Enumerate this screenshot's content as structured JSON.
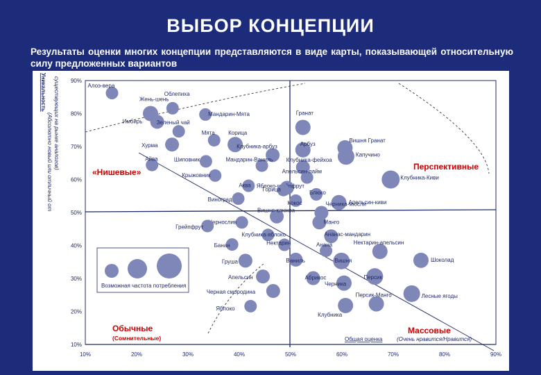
{
  "title": "ВЫБОР КОНЦЕПЦИИ",
  "subtitle": "Результаты оценки многих концепции представляются в виде карты, показывающей относительную силу предложенных вариантов",
  "colors": {
    "background": "#1c2b7a",
    "panel": "#ffffff",
    "quadrant_text": "#cc0000",
    "dots": "#7f86b8",
    "axes": "#1f2a66"
  },
  "y_axis_label_1": "Уникальность",
  "y_axis_label_2": "(Абсолютно новый или отличный от",
  "y_axis_label_3": "существующих на рынке аналогов)",
  "x_axis_label": "Общая оценка",
  "x_axis_note": "(Очень нравится/Нравится)",
  "quadrants": {
    "niche": "«Нишевые»",
    "promising": "Перспективные",
    "ordinary": "Обычные",
    "ordinary_sub": "(Сомнительные)",
    "mass": "Массовые"
  },
  "legend_label": "Возможная частота потребления",
  "chart_data": {
    "type": "scatter",
    "title": "",
    "xlabel": "Общая оценка (Очень нравится/Нравится)",
    "ylabel": "Уникальность (Абсолютно новый или отличный от существующих на рынке аналогов)",
    "xlim": [
      10,
      90
    ],
    "ylim": [
      10,
      90
    ],
    "x_ticks": [
      "10%",
      "20%",
      "30%",
      "40%",
      "50%",
      "60%",
      "70%",
      "80%",
      "90%"
    ],
    "y_ticks": [
      "10%",
      "20%",
      "30%",
      "40%",
      "50%",
      "60%",
      "70%",
      "80%",
      "90%"
    ],
    "points": [
      {
        "label": "Алоэ-вера",
        "x": 15.2,
        "y": 86.2
      },
      {
        "label": "Жень-шень",
        "x": 22.7,
        "y": 80.0
      },
      {
        "label": "Имбирь",
        "x": 24.0,
        "y": 77.5
      },
      {
        "label": "Облепиха",
        "x": 27.0,
        "y": 81.6
      },
      {
        "label": "Мандарин-Мята",
        "x": 33.4,
        "y": 79.7
      },
      {
        "label": "Зеленый чай",
        "x": 28.2,
        "y": 74.6
      },
      {
        "label": "Хурма",
        "x": 26.9,
        "y": 70.6
      },
      {
        "label": "Мята",
        "x": 35.1,
        "y": 71.9
      },
      {
        "label": "Корица",
        "x": 39.2,
        "y": 70.6
      },
      {
        "label": "Гранат",
        "x": 52.4,
        "y": 75.8
      },
      {
        "label": "Айва",
        "x": 23.0,
        "y": 64.4
      },
      {
        "label": "Шиповник",
        "x": 33.5,
        "y": 65.5
      },
      {
        "label": "Клубника-арбуз",
        "x": 46.5,
        "y": 67.4
      },
      {
        "label": "Арбуз",
        "x": 52.4,
        "y": 69.0
      },
      {
        "label": "Вишня Гранат",
        "x": 60.6,
        "y": 69.6
      },
      {
        "label": "Мандарин-Ваниль",
        "x": 44.4,
        "y": 64.2
      },
      {
        "label": "Клубника-фейхоа",
        "x": 52.4,
        "y": 63.7
      },
      {
        "label": "Капучино",
        "x": 60.8,
        "y": 67.0
      },
      {
        "label": "Крыжовник",
        "x": 35.3,
        "y": 61.2
      },
      {
        "label": "Апельсин-лайм",
        "x": 53.2,
        "y": 60.6
      },
      {
        "label": "Аква",
        "x": 41.8,
        "y": 58.1
      },
      {
        "label": "Яблоко-грейпфрут",
        "x": 49.3,
        "y": 57.5
      },
      {
        "label": "Горица",
        "x": 48.6,
        "y": 56.8
      },
      {
        "label": "Клубника-Киви",
        "x": 69.5,
        "y": 60.0
      },
      {
        "label": "Виноград",
        "x": 39.8,
        "y": 54.2
      },
      {
        "label": "Блюко",
        "x": 55.0,
        "y": 55.5
      },
      {
        "label": "Кокос",
        "x": 51.0,
        "y": 53.6
      },
      {
        "label": "Апельсин-киви",
        "x": 59.4,
        "y": 53.0
      },
      {
        "label": "Вишня-клюква",
        "x": 47.3,
        "y": 48.8
      },
      {
        "label": "Черника-мюсли",
        "x": 56.0,
        "y": 49.9
      },
      {
        "label": "Чернослив",
        "x": 40.5,
        "y": 47.0
      },
      {
        "label": "Манго",
        "x": 55.6,
        "y": 47.0
      },
      {
        "label": "Грейпфрут",
        "x": 33.8,
        "y": 45.9
      },
      {
        "label": "Клубника-яблоко",
        "x": 45.6,
        "y": 43.2
      },
      {
        "label": "Ананас-мандарин",
        "x": 57.9,
        "y": 42.8
      },
      {
        "label": "Банан",
        "x": 38.6,
        "y": 40.3
      },
      {
        "label": "Нектарин",
        "x": 48.8,
        "y": 40.2
      },
      {
        "label": "Анана",
        "x": 56.9,
        "y": 38.4
      },
      {
        "label": "Нектарин-апельсин",
        "x": 67.4,
        "y": 38.2
      },
      {
        "label": "Груша",
        "x": 41.2,
        "y": 35.4
      },
      {
        "label": "Ваниль",
        "x": 51.0,
        "y": 35.7
      },
      {
        "label": "Вишня",
        "x": 59.9,
        "y": 35.3
      },
      {
        "label": "Шоколад",
        "x": 75.4,
        "y": 35.5
      },
      {
        "label": "Апельсин",
        "x": 44.6,
        "y": 30.6
      },
      {
        "label": "Абрикос",
        "x": 54.4,
        "y": 30.1
      },
      {
        "label": "Персик",
        "x": 66.4,
        "y": 30.6
      },
      {
        "label": "Черника",
        "x": 60.4,
        "y": 28.6
      },
      {
        "label": "Черная смородина",
        "x": 46.6,
        "y": 26.2
      },
      {
        "label": "Лесные ягоды",
        "x": 73.6,
        "y": 25.4
      },
      {
        "label": "Яблоко",
        "x": 42.2,
        "y": 21.6
      },
      {
        "label": "Клубника",
        "x": 60.7,
        "y": 21.8
      },
      {
        "label": "Персик-Манго",
        "x": 66.7,
        "y": 22.3
      }
    ]
  }
}
